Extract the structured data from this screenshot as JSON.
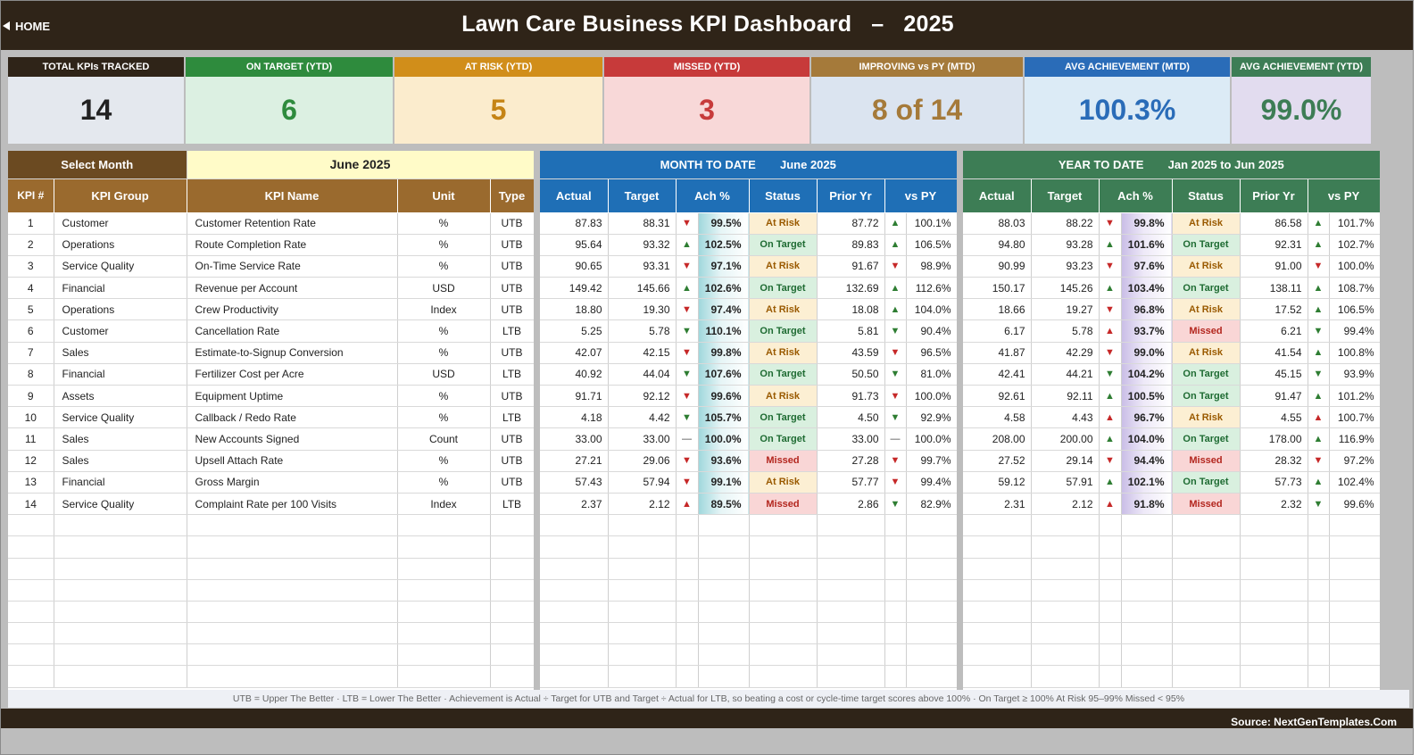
{
  "header": {
    "home_label": "HOME",
    "title": "Lawn Care Business KPI Dashboard",
    "separator": "–",
    "year": "2025"
  },
  "colors": {
    "header_bg": "#2f2418",
    "brown": "#9a6a2e",
    "mtd_blue": "#1f6fb6",
    "ytd_green": "#3d7d55"
  },
  "cards": [
    {
      "label": "TOTAL KPIs TRACKED",
      "value": "14",
      "head_color": "#2f2418",
      "body_color": "#e4e8ee",
      "value_color": "#222222"
    },
    {
      "label": "ON TARGET (YTD)",
      "value": "6",
      "head_color": "#2e8b3d",
      "body_color": "#dcf0e2",
      "value_color": "#2e8b3d"
    },
    {
      "label": "AT RISK (YTD)",
      "value": "5",
      "head_color": "#d18e1a",
      "body_color": "#fbeccd",
      "value_color": "#c58415"
    },
    {
      "label": "MISSED (YTD)",
      "value": "3",
      "head_color": "#c73a3a",
      "body_color": "#f8d8d8",
      "value_color": "#c73a3a"
    },
    {
      "label": "IMPROVING vs PY (MTD)",
      "value": "8 of 14",
      "head_color": "#a57a3a",
      "body_color": "#dbe4f0",
      "value_color": "#a57a3a"
    },
    {
      "label": "AVG ACHIEVEMENT (MTD)",
      "value": "100.3%",
      "head_color": "#2a6cb8",
      "body_color": "#dcebf6",
      "value_color": "#2a6cb8"
    },
    {
      "label": "AVG ACHIEVEMENT (YTD)",
      "value": "99.0%",
      "head_color": "#3d7d55",
      "body_color": "#e2dcef",
      "value_color": "#3d7d55"
    }
  ],
  "selector": {
    "label": "Select Month",
    "value": "June 2025"
  },
  "mtd_banner": {
    "label": "MONTH TO DATE",
    "period": "June 2025"
  },
  "ytd_banner": {
    "label": "YEAR TO DATE",
    "from": "Jan 2025",
    "to_word": "to",
    "to": "Jun 2025"
  },
  "kpi_columns": [
    "KPI #",
    "KPI Group",
    "KPI Name",
    "Unit",
    "Type"
  ],
  "metric_columns": [
    "Actual",
    "Target",
    "Ach %",
    "Status",
    "Prior Yr",
    "vs PY"
  ],
  "kpis": [
    {
      "num": "1",
      "group": "Customer",
      "name": "Customer Retention Rate",
      "unit": "%",
      "type": "UTB",
      "mtd": {
        "actual": "87.83",
        "target": "88.31",
        "ach_dir": "down",
        "ach": "99.5%",
        "status": "At Risk",
        "prior": "87.72",
        "py_dir": "up",
        "vs_py": "100.1%"
      },
      "ytd": {
        "actual": "88.03",
        "target": "88.22",
        "ach_dir": "down",
        "ach": "99.8%",
        "status": "At Risk",
        "prior": "86.58",
        "py_dir": "up",
        "vs_py": "101.7%"
      }
    },
    {
      "num": "2",
      "group": "Operations",
      "name": "Route Completion Rate",
      "unit": "%",
      "type": "UTB",
      "mtd": {
        "actual": "95.64",
        "target": "93.32",
        "ach_dir": "up",
        "ach": "102.5%",
        "status": "On Target",
        "prior": "89.83",
        "py_dir": "up",
        "vs_py": "106.5%"
      },
      "ytd": {
        "actual": "94.80",
        "target": "93.28",
        "ach_dir": "up",
        "ach": "101.6%",
        "status": "On Target",
        "prior": "92.31",
        "py_dir": "up",
        "vs_py": "102.7%"
      }
    },
    {
      "num": "3",
      "group": "Service Quality",
      "name": "On-Time Service Rate",
      "unit": "%",
      "type": "UTB",
      "mtd": {
        "actual": "90.65",
        "target": "93.31",
        "ach_dir": "down",
        "ach": "97.1%",
        "status": "At Risk",
        "prior": "91.67",
        "py_dir": "down",
        "vs_py": "98.9%"
      },
      "ytd": {
        "actual": "90.99",
        "target": "93.23",
        "ach_dir": "down",
        "ach": "97.6%",
        "status": "At Risk",
        "prior": "91.00",
        "py_dir": "down",
        "vs_py": "100.0%"
      }
    },
    {
      "num": "4",
      "group": "Financial",
      "name": "Revenue per Account",
      "unit": "USD",
      "type": "UTB",
      "mtd": {
        "actual": "149.42",
        "target": "145.66",
        "ach_dir": "up",
        "ach": "102.6%",
        "status": "On Target",
        "prior": "132.69",
        "py_dir": "up",
        "vs_py": "112.6%"
      },
      "ytd": {
        "actual": "150.17",
        "target": "145.26",
        "ach_dir": "up",
        "ach": "103.4%",
        "status": "On Target",
        "prior": "138.11",
        "py_dir": "up",
        "vs_py": "108.7%"
      }
    },
    {
      "num": "5",
      "group": "Operations",
      "name": "Crew Productivity",
      "unit": "Index",
      "type": "UTB",
      "mtd": {
        "actual": "18.80",
        "target": "19.30",
        "ach_dir": "down",
        "ach": "97.4%",
        "status": "At Risk",
        "prior": "18.08",
        "py_dir": "up",
        "vs_py": "104.0%"
      },
      "ytd": {
        "actual": "18.66",
        "target": "19.27",
        "ach_dir": "down",
        "ach": "96.8%",
        "status": "At Risk",
        "prior": "17.52",
        "py_dir": "up",
        "vs_py": "106.5%"
      }
    },
    {
      "num": "6",
      "group": "Customer",
      "name": "Cancellation Rate",
      "unit": "%",
      "type": "LTB",
      "mtd": {
        "actual": "5.25",
        "target": "5.78",
        "ach_dir": "down",
        "ach": "110.1%",
        "status": "On Target",
        "prior": "5.81",
        "py_dir": "down",
        "vs_py": "90.4%",
        "ach_color": "up",
        "py_color": "up"
      },
      "ytd": {
        "actual": "6.17",
        "target": "5.78",
        "ach_dir": "up",
        "ach": "93.7%",
        "status": "Missed",
        "prior": "6.21",
        "py_dir": "down",
        "vs_py": "99.4%",
        "ach_color": "down",
        "py_color": "up"
      }
    },
    {
      "num": "7",
      "group": "Sales",
      "name": "Estimate-to-Signup Conversion",
      "unit": "%",
      "type": "UTB",
      "mtd": {
        "actual": "42.07",
        "target": "42.15",
        "ach_dir": "down",
        "ach": "99.8%",
        "status": "At Risk",
        "prior": "43.59",
        "py_dir": "down",
        "vs_py": "96.5%"
      },
      "ytd": {
        "actual": "41.87",
        "target": "42.29",
        "ach_dir": "down",
        "ach": "99.0%",
        "status": "At Risk",
        "prior": "41.54",
        "py_dir": "up",
        "vs_py": "100.8%"
      }
    },
    {
      "num": "8",
      "group": "Financial",
      "name": "Fertilizer Cost per Acre",
      "unit": "USD",
      "type": "LTB",
      "mtd": {
        "actual": "40.92",
        "target": "44.04",
        "ach_dir": "down",
        "ach": "107.6%",
        "status": "On Target",
        "prior": "50.50",
        "py_dir": "down",
        "vs_py": "81.0%",
        "ach_color": "up",
        "py_color": "up"
      },
      "ytd": {
        "actual": "42.41",
        "target": "44.21",
        "ach_dir": "down",
        "ach": "104.2%",
        "status": "On Target",
        "prior": "45.15",
        "py_dir": "down",
        "vs_py": "93.9%",
        "ach_color": "up",
        "py_color": "up"
      }
    },
    {
      "num": "9",
      "group": "Assets",
      "name": "Equipment Uptime",
      "unit": "%",
      "type": "UTB",
      "mtd": {
        "actual": "91.71",
        "target": "92.12",
        "ach_dir": "down",
        "ach": "99.6%",
        "status": "At Risk",
        "prior": "91.73",
        "py_dir": "down",
        "vs_py": "100.0%"
      },
      "ytd": {
        "actual": "92.61",
        "target": "92.11",
        "ach_dir": "up",
        "ach": "100.5%",
        "status": "On Target",
        "prior": "91.47",
        "py_dir": "up",
        "vs_py": "101.2%"
      }
    },
    {
      "num": "10",
      "group": "Service Quality",
      "name": "Callback / Redo Rate",
      "unit": "%",
      "type": "LTB",
      "mtd": {
        "actual": "4.18",
        "target": "4.42",
        "ach_dir": "down",
        "ach": "105.7%",
        "status": "On Target",
        "prior": "4.50",
        "py_dir": "down",
        "vs_py": "92.9%",
        "ach_color": "up",
        "py_color": "up"
      },
      "ytd": {
        "actual": "4.58",
        "target": "4.43",
        "ach_dir": "up",
        "ach": "96.7%",
        "status": "At Risk",
        "prior": "4.55",
        "py_dir": "up",
        "vs_py": "100.7%",
        "ach_color": "down",
        "py_color": "down"
      }
    },
    {
      "num": "11",
      "group": "Sales",
      "name": "New Accounts Signed",
      "unit": "Count",
      "type": "UTB",
      "mtd": {
        "actual": "33.00",
        "target": "33.00",
        "ach_dir": "flat",
        "ach": "100.0%",
        "status": "On Target",
        "prior": "33.00",
        "py_dir": "flat",
        "vs_py": "100.0%"
      },
      "ytd": {
        "actual": "208.00",
        "target": "200.00",
        "ach_dir": "up",
        "ach": "104.0%",
        "status": "On Target",
        "prior": "178.00",
        "py_dir": "up",
        "vs_py": "116.9%"
      }
    },
    {
      "num": "12",
      "group": "Sales",
      "name": "Upsell Attach Rate",
      "unit": "%",
      "type": "UTB",
      "mtd": {
        "actual": "27.21",
        "target": "29.06",
        "ach_dir": "down",
        "ach": "93.6%",
        "status": "Missed",
        "prior": "27.28",
        "py_dir": "down",
        "vs_py": "99.7%"
      },
      "ytd": {
        "actual": "27.52",
        "target": "29.14",
        "ach_dir": "down",
        "ach": "94.4%",
        "status": "Missed",
        "prior": "28.32",
        "py_dir": "down",
        "vs_py": "97.2%"
      }
    },
    {
      "num": "13",
      "group": "Financial",
      "name": "Gross Margin",
      "unit": "%",
      "type": "UTB",
      "mtd": {
        "actual": "57.43",
        "target": "57.94",
        "ach_dir": "down",
        "ach": "99.1%",
        "status": "At Risk",
        "prior": "57.77",
        "py_dir": "down",
        "vs_py": "99.4%"
      },
      "ytd": {
        "actual": "59.12",
        "target": "57.91",
        "ach_dir": "up",
        "ach": "102.1%",
        "status": "On Target",
        "prior": "57.73",
        "py_dir": "up",
        "vs_py": "102.4%"
      }
    },
    {
      "num": "14",
      "group": "Service Quality",
      "name": "Complaint Rate per 100 Visits",
      "unit": "Index",
      "type": "LTB",
      "mtd": {
        "actual": "2.37",
        "target": "2.12",
        "ach_dir": "up",
        "ach": "89.5%",
        "status": "Missed",
        "prior": "2.86",
        "py_dir": "down",
        "vs_py": "82.9%",
        "ach_color": "down",
        "py_color": "up"
      },
      "ytd": {
        "actual": "2.31",
        "target": "2.12",
        "ach_dir": "up",
        "ach": "91.8%",
        "status": "Missed",
        "prior": "2.32",
        "py_dir": "down",
        "vs_py": "99.6%",
        "ach_color": "down",
        "py_color": "up"
      }
    }
  ],
  "legend": "UTB = Upper The Better   ·   LTB = Lower The Better   ·   Achievement is Actual ÷ Target for UTB and Target ÷ Actual for LTB, so beating a cost or cycle-time target scores above 100%   ·   On Target ≥ 100%   At Risk 95–99%   Missed < 95%",
  "source": "Source: NextGenTemplates.Com"
}
